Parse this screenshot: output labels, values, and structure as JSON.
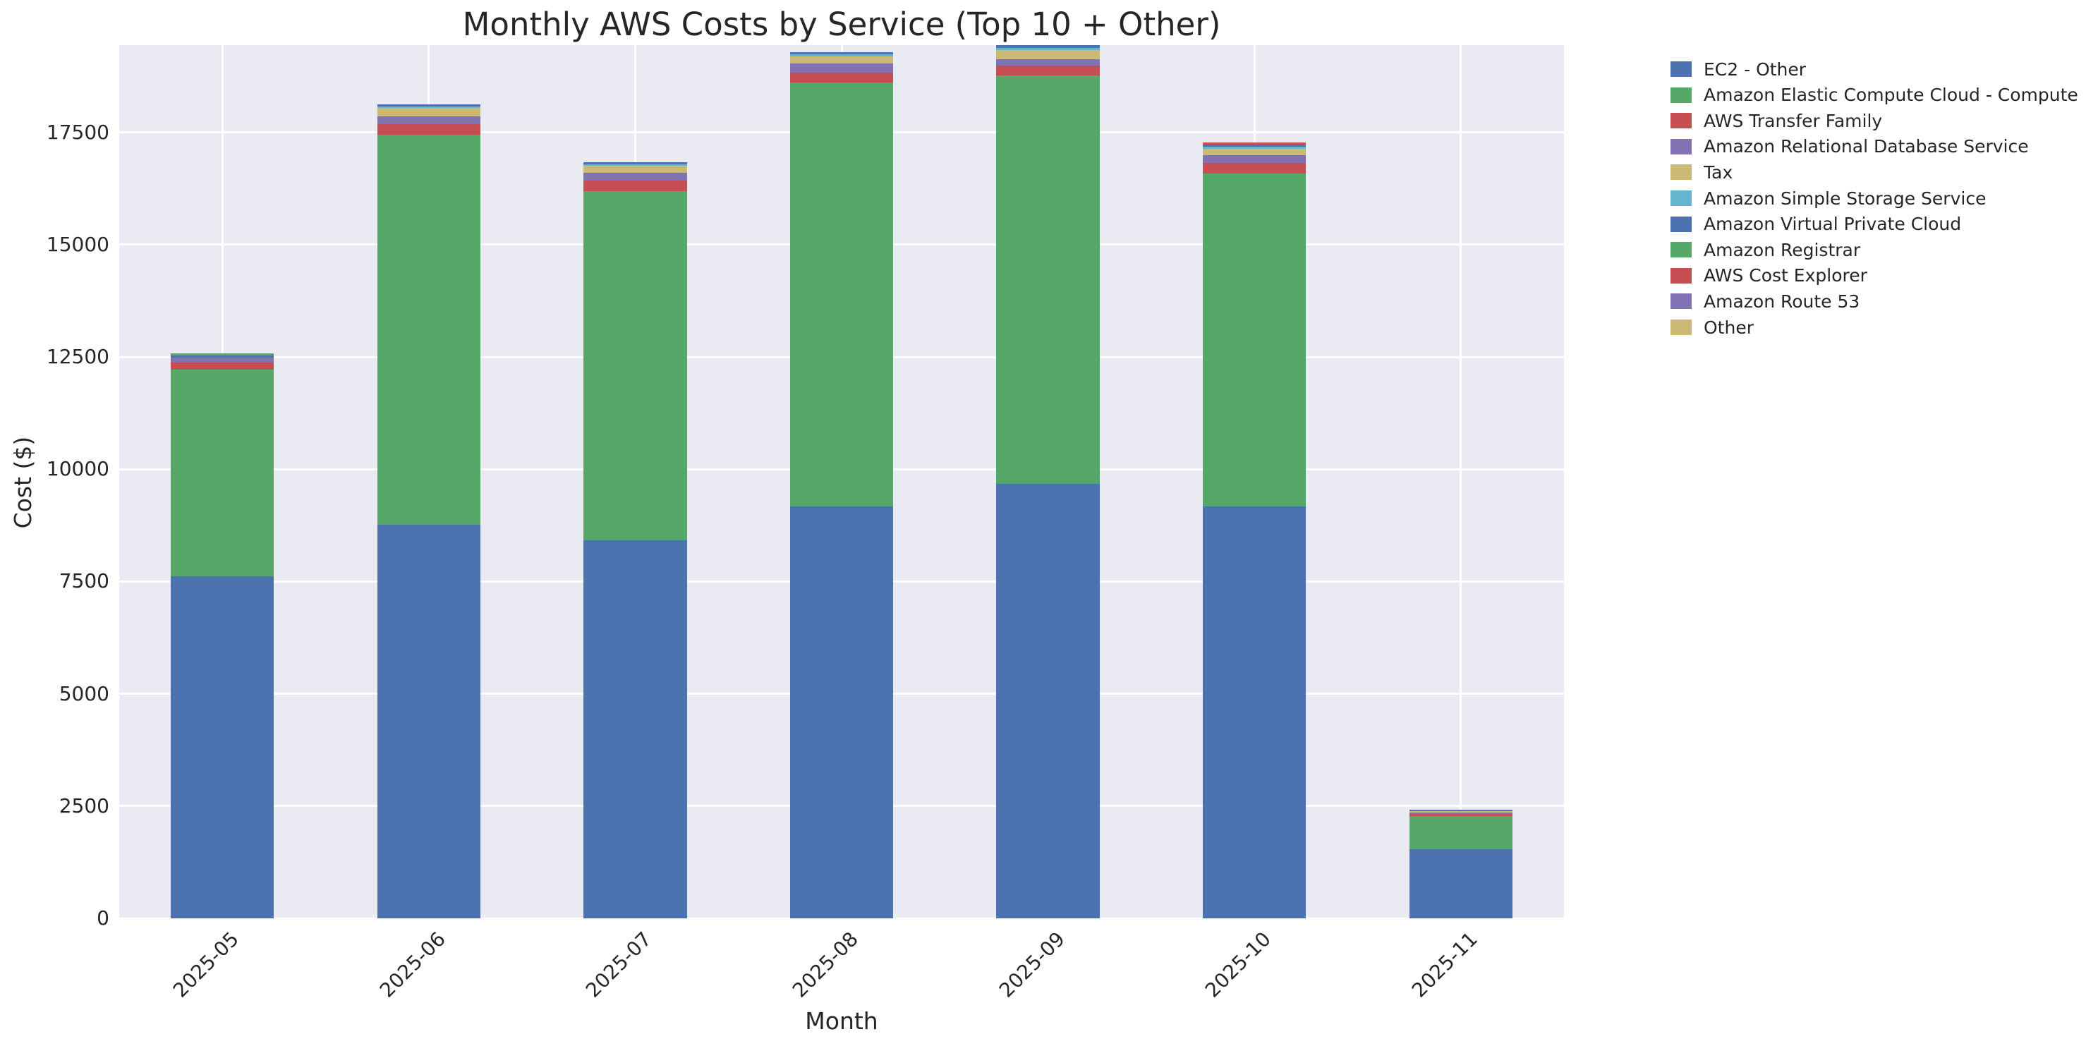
{
  "figure": {
    "title": "Monthly AWS Costs by Service (Top 10 + Other)",
    "xlabel": "Month",
    "ylabel": "Cost ($)"
  },
  "chart_data": {
    "type": "bar",
    "stacked": true,
    "title": "Monthly AWS Costs by Service (Top 10 + Other)",
    "xlabel": "Month",
    "ylabel": "Cost ($)",
    "grid": true,
    "legend_position": "outside-upper-right",
    "background_color": "#EAEAF2",
    "gridline_color": "#FFFFFF",
    "text_color": "#262626",
    "categories": [
      "2025-05",
      "2025-06",
      "2025-07",
      "2025-08",
      "2025-09",
      "2025-10",
      "2025-11"
    ],
    "yticks": [
      0,
      2500,
      5000,
      7500,
      10000,
      12500,
      15000,
      17500
    ],
    "ylim": [
      0,
      19443
    ],
    "bar_width_fraction": 0.5,
    "series": [
      {
        "name": "EC2 - Other",
        "color": "#4C72B0",
        "values": [
          7617,
          8769,
          8417,
          9170,
          9673,
          9170,
          1538
        ]
      },
      {
        "name": "Amazon Elastic Compute Cloud - Compute",
        "color": "#55A868",
        "values": [
          4598,
          8679,
          7779,
          9434,
          9090,
          7409,
          733
        ]
      },
      {
        "name": "AWS Transfer Family",
        "color": "#C44E52",
        "values": [
          168,
          240,
          224,
          220,
          220,
          246,
          47
        ]
      },
      {
        "name": "Amazon Relational Database Service",
        "color": "#8172B2",
        "values": [
          100,
          168,
          177,
          209,
          141,
          168,
          31
        ]
      },
      {
        "name": "Tax",
        "color": "#CCB974",
        "values": [
          0,
          188,
          162,
          157,
          204,
          137,
          36
        ]
      },
      {
        "name": "Amazon Simple Storage Service",
        "color": "#64B5CD",
        "values": [
          0,
          36,
          36,
          42,
          52,
          47,
          0
        ]
      },
      {
        "name": "Amazon Virtual Private Cloud",
        "color": "#4C72B0",
        "values": [
          42,
          36,
          42,
          52,
          63,
          58,
          36
        ]
      },
      {
        "name": "Amazon Registrar",
        "color": "#55A868",
        "values": [
          52,
          0,
          0,
          0,
          0,
          0,
          0
        ]
      },
      {
        "name": "AWS Cost Explorer",
        "color": "#C44E52",
        "values": [
          0,
          0,
          0,
          0,
          0,
          36,
          0
        ]
      },
      {
        "name": "Amazon Route 53",
        "color": "#8172B2",
        "values": [
          0,
          0,
          0,
          0,
          0,
          0,
          0
        ]
      },
      {
        "name": "Other",
        "color": "#CCB974",
        "values": [
          0,
          0,
          0,
          0,
          0,
          0,
          0
        ]
      }
    ],
    "totals": [
      12577,
      18116,
      16837,
      19284,
      19443,
      17271,
      2421
    ]
  }
}
